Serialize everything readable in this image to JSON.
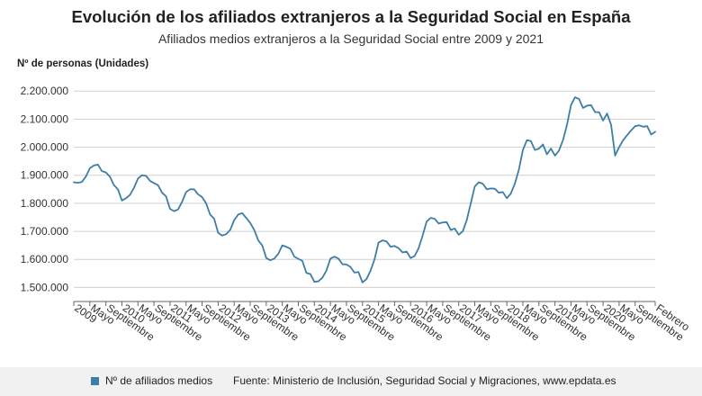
{
  "header": {
    "title": "Evolución de los afiliados extranjeros a la Seguridad Social en España",
    "subtitle": "Afiliados medios extranjeros a la Seguridad Social entre 2009 y 2021"
  },
  "footer": {
    "legend_label": "Nº de afiliados medios",
    "source": "Fuente: Ministerio de Inclusión, Seguridad Social y Migraciones, www.epdata.es"
  },
  "colors": {
    "line": "#3d7ea6",
    "grid": "#d0d0d0",
    "axis": "#666666",
    "footer_bg": "#f1f1f1"
  },
  "chart_data": {
    "type": "line",
    "title": "Evolución de los afiliados extranjeros a la Seguridad Social en España",
    "subtitle": "Afiliados medios extranjeros a la Seguridad Social entre 2009 y 2021",
    "ylabel": "Nº de personas (Unidades)",
    "ylim": [
      1450000,
      2220000
    ],
    "y_ticks": [
      1500000,
      1600000,
      1700000,
      1800000,
      1900000,
      2000000,
      2100000,
      2200000
    ],
    "y_tick_labels": [
      "1.500.000",
      "1.600.000",
      "1.700.000",
      "1.800.000",
      "1.900.000",
      "2.000.000",
      "2.100.000",
      "2.200.000"
    ],
    "x_start": "2009-01",
    "x_end": "2021-02",
    "x_tick_labels": [
      {
        "date": "2009-01",
        "label": "2009"
      },
      {
        "date": "2009-05",
        "label": "Mayo"
      },
      {
        "date": "2009-09",
        "label": "Septiembre"
      },
      {
        "date": "2010-01",
        "label": "2010"
      },
      {
        "date": "2010-05",
        "label": "Mayo"
      },
      {
        "date": "2010-09",
        "label": "Septiembre"
      },
      {
        "date": "2011-01",
        "label": "2011"
      },
      {
        "date": "2011-05",
        "label": "Mayo"
      },
      {
        "date": "2011-09",
        "label": "Septiembre"
      },
      {
        "date": "2012-01",
        "label": "2012"
      },
      {
        "date": "2012-05",
        "label": "Mayo"
      },
      {
        "date": "2012-09",
        "label": "Septiembre"
      },
      {
        "date": "2013-01",
        "label": "2013"
      },
      {
        "date": "2013-05",
        "label": "Mayo"
      },
      {
        "date": "2013-09",
        "label": "Septiembre"
      },
      {
        "date": "2014-01",
        "label": "2014"
      },
      {
        "date": "2014-05",
        "label": "Mayo"
      },
      {
        "date": "2014-09",
        "label": "Septiembre"
      },
      {
        "date": "2015-01",
        "label": "2015"
      },
      {
        "date": "2015-05",
        "label": "Mayo"
      },
      {
        "date": "2015-09",
        "label": "Septiembre"
      },
      {
        "date": "2016-01",
        "label": "2016"
      },
      {
        "date": "2016-05",
        "label": "Mayo"
      },
      {
        "date": "2016-09",
        "label": "Septiembre"
      },
      {
        "date": "2017-01",
        "label": "2017"
      },
      {
        "date": "2017-05",
        "label": "Mayo"
      },
      {
        "date": "2017-09",
        "label": "Septiembre"
      },
      {
        "date": "2018-01",
        "label": "2018"
      },
      {
        "date": "2018-05",
        "label": "Mayo"
      },
      {
        "date": "2018-09",
        "label": "Septiembre"
      },
      {
        "date": "2019-01",
        "label": "2019"
      },
      {
        "date": "2019-05",
        "label": "Mayo"
      },
      {
        "date": "2019-09",
        "label": "Septiembre"
      },
      {
        "date": "2020-01",
        "label": "2020"
      },
      {
        "date": "2020-05",
        "label": "Mayo"
      },
      {
        "date": "2020-09",
        "label": "Septiembre"
      },
      {
        "date": "2021-02",
        "label": "Febrero"
      }
    ],
    "grid": true,
    "legend": "bottom-left",
    "series": [
      {
        "name": "Nº de afiliados medios",
        "values": [
          1875000,
          1873000,
          1876000,
          1895000,
          1925000,
          1935000,
          1938000,
          1915000,
          1910000,
          1895000,
          1865000,
          1850000,
          1810000,
          1818000,
          1830000,
          1855000,
          1888000,
          1900000,
          1898000,
          1880000,
          1872000,
          1865000,
          1838000,
          1825000,
          1780000,
          1772000,
          1778000,
          1805000,
          1840000,
          1850000,
          1850000,
          1832000,
          1822000,
          1800000,
          1760000,
          1745000,
          1695000,
          1685000,
          1690000,
          1705000,
          1740000,
          1760000,
          1765000,
          1748000,
          1730000,
          1705000,
          1668000,
          1650000,
          1605000,
          1597000,
          1603000,
          1620000,
          1650000,
          1645000,
          1638000,
          1610000,
          1602000,
          1595000,
          1552000,
          1548000,
          1520000,
          1522000,
          1535000,
          1560000,
          1603000,
          1610000,
          1603000,
          1583000,
          1582000,
          1573000,
          1553000,
          1555000,
          1518000,
          1530000,
          1560000,
          1600000,
          1660000,
          1668000,
          1664000,
          1645000,
          1648000,
          1640000,
          1625000,
          1628000,
          1605000,
          1612000,
          1640000,
          1685000,
          1735000,
          1748000,
          1745000,
          1728000,
          1732000,
          1733000,
          1705000,
          1710000,
          1688000,
          1700000,
          1740000,
          1800000,
          1860000,
          1875000,
          1870000,
          1850000,
          1853000,
          1852000,
          1838000,
          1840000,
          1818000,
          1835000,
          1870000,
          1920000,
          1990000,
          2025000,
          2022000,
          1990000,
          1995000,
          2010000,
          1975000,
          1995000,
          1970000,
          1988000,
          2025000,
          2080000,
          2150000,
          2178000,
          2172000,
          2140000,
          2148000,
          2150000,
          2125000,
          2125000,
          2095000,
          2120000,
          2080000,
          1970000,
          2000000,
          2025000,
          2043000,
          2060000,
          2075000,
          2078000,
          2073000,
          2075000,
          2045000,
          2055000
        ]
      }
    ]
  }
}
